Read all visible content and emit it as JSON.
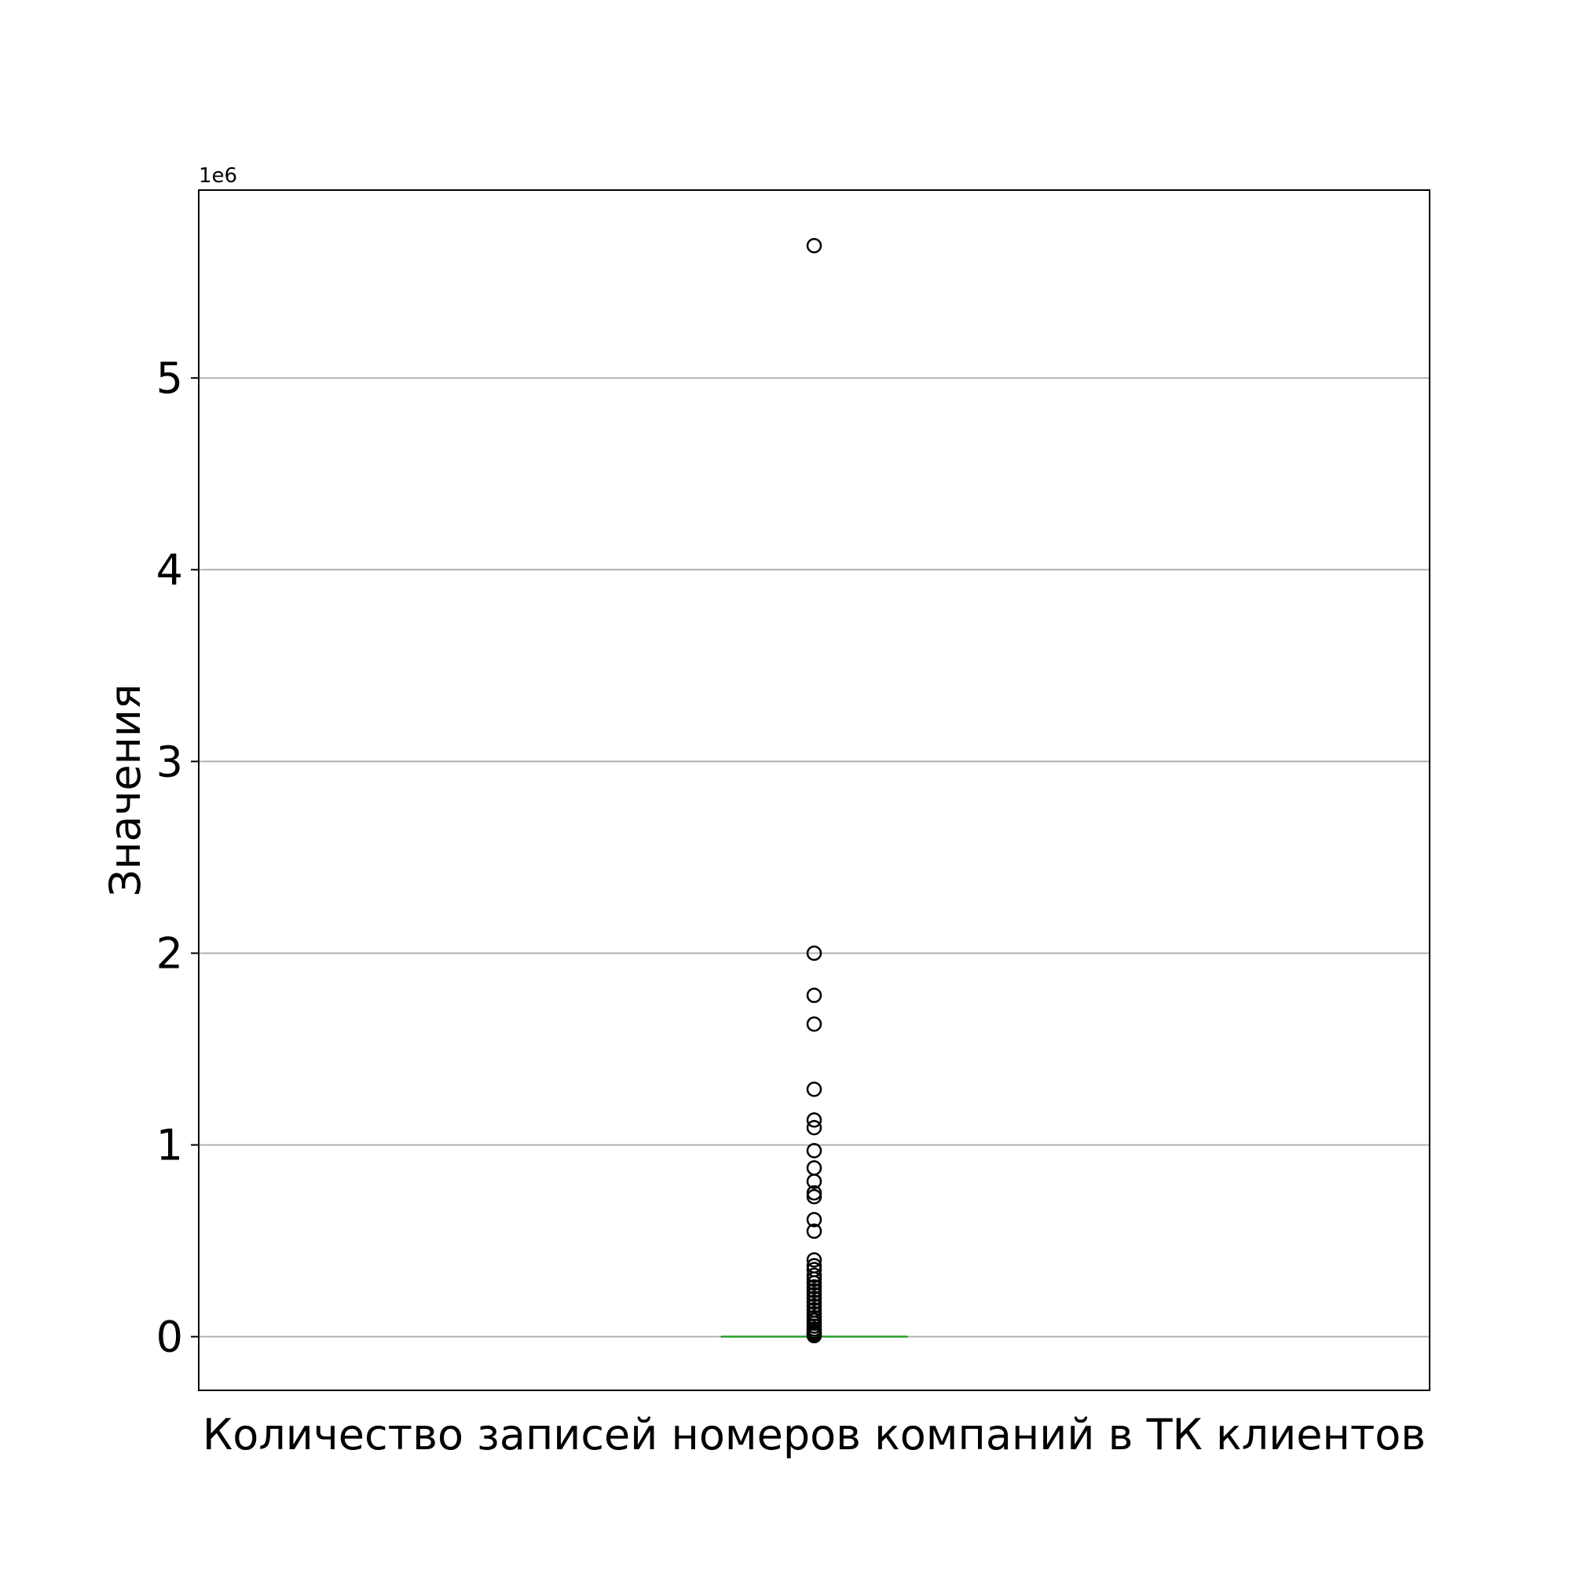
{
  "chart_data": {
    "type": "box",
    "xlabel": "Количество записей номеров компаний в ТК клиентов",
    "ylabel": "Значения",
    "y_offset_label": "1e6",
    "y_scale": 1000000,
    "ylim": [
      -280000,
      5980000
    ],
    "yticks": [
      0,
      1000000,
      2000000,
      3000000,
      4000000,
      5000000
    ],
    "ytick_labels": [
      "0",
      "1",
      "2",
      "3",
      "4",
      "5"
    ],
    "grid": "y",
    "categories": [
      "Количество записей номеров компаний в ТК клиентов"
    ],
    "box": {
      "q1": 0,
      "median": 0,
      "q3": 0,
      "whisker_low": 0,
      "whisker_high": 0
    },
    "outliers": [
      5690000,
      2000000,
      1780000,
      1630000,
      1290000,
      1130000,
      1090000,
      970000,
      880000,
      810000,
      750000,
      730000,
      610000,
      550000,
      400000,
      370000,
      350000,
      320000,
      300000,
      280000,
      260000,
      240000,
      220000,
      200000,
      180000,
      160000,
      140000,
      120000,
      100000,
      85000,
      70000,
      55000,
      40000,
      28000,
      18000,
      10000,
      5000
    ],
    "colors": {
      "median": "#2ca02c",
      "outlier_edge": "#000000",
      "grid": "#b0b0b0",
      "axes": "#000000"
    }
  }
}
